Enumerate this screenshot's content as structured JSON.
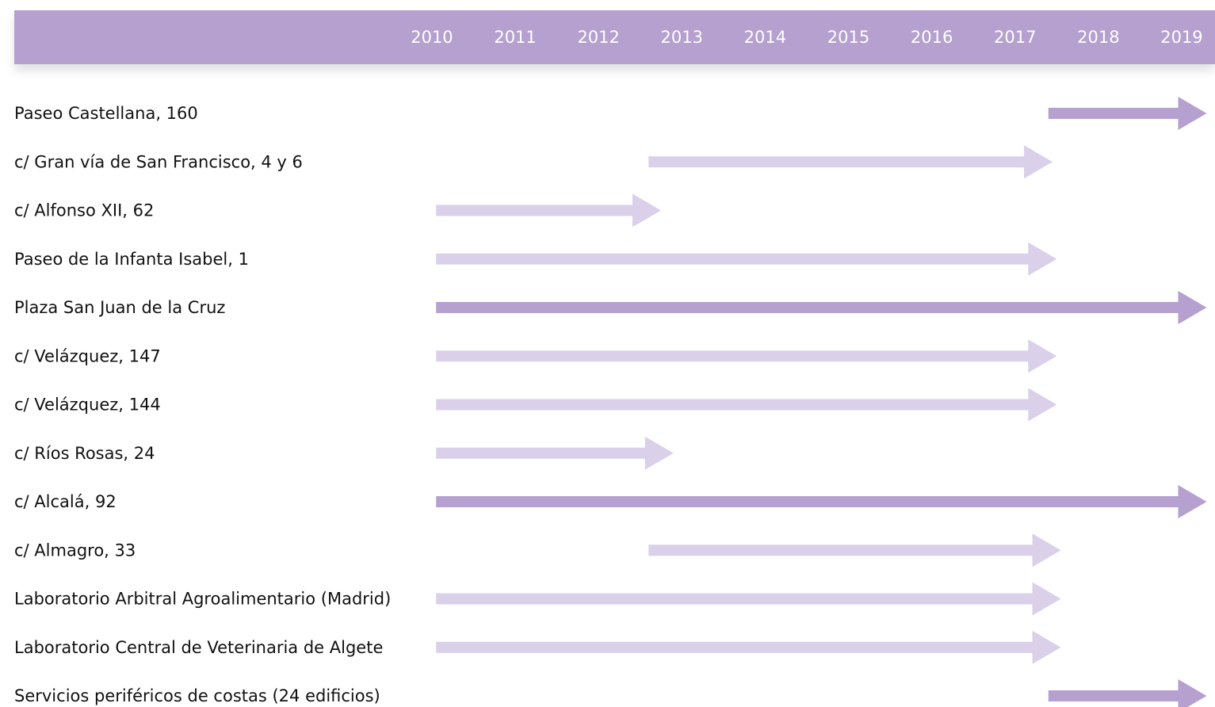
{
  "chart_data": {
    "type": "timeline",
    "header_color": "#b5a0cf",
    "xlim": [
      2009.5,
      2019.4
    ],
    "xticks": [
      2010,
      2011,
      2012,
      2013,
      2014,
      2015,
      2016,
      2017,
      2018,
      2019
    ],
    "tasks": [
      {
        "label": "Paseo Castellana, 160",
        "start": 2017.4,
        "end": 2019.3,
        "color": "#b5a0cf"
      },
      {
        "label": "c/ Gran vía de San Francisco, 4 y 6",
        "start": 2012.6,
        "end": 2017.45,
        "color": "#dad0ea"
      },
      {
        "label": "c/ Alfonso XII, 62",
        "start": 2010.05,
        "end": 2012.75,
        "color": "#dad0ea"
      },
      {
        "label": "Paseo de la Infanta Isabel, 1",
        "start": 2010.05,
        "end": 2017.5,
        "color": "#dad0ea"
      },
      {
        "label": "Plaza San Juan de la Cruz",
        "start": 2010.05,
        "end": 2019.3,
        "color": "#b5a0cf"
      },
      {
        "label": "c/ Velázquez, 147",
        "start": 2010.05,
        "end": 2017.5,
        "color": "#dad0ea"
      },
      {
        "label": "c/ Velázquez, 144",
        "start": 2010.05,
        "end": 2017.5,
        "color": "#dad0ea"
      },
      {
        "label": "c/ Ríos Rosas, 24",
        "start": 2010.05,
        "end": 2012.9,
        "color": "#dad0ea"
      },
      {
        "label": "c/ Alcalá, 92",
        "start": 2010.05,
        "end": 2019.3,
        "color": "#b5a0cf"
      },
      {
        "label": "c/ Almagro, 33",
        "start": 2012.6,
        "end": 2017.55,
        "color": "#dad0ea"
      },
      {
        "label": "Laboratorio Arbitral Agroalimentario (Madrid)",
        "start": 2010.05,
        "end": 2017.55,
        "color": "#dad0ea"
      },
      {
        "label": "Laboratorio Central de Veterinaria de Algete",
        "start": 2010.05,
        "end": 2017.55,
        "color": "#dad0ea"
      },
      {
        "label": "Servicios periféricos de costas (24 edificios)",
        "start": 2017.4,
        "end": 2019.3,
        "color": "#b5a0cf"
      }
    ]
  }
}
